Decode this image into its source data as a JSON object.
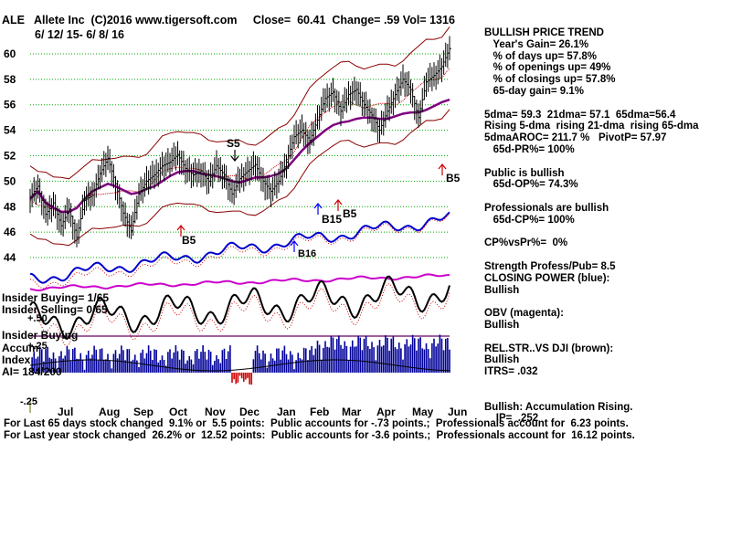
{
  "header": {
    "title": "ALE   Allete Inc  (C)2016 www.tigersoft.com     Close=  60.41  Change= .59 Vol= 1316",
    "date_range": "6/ 12/ 15- 6/ 8/ 16"
  },
  "signals": {
    "s5": "S5",
    "b5_lower": "B5",
    "b15": "B15",
    "b5_mid": "B5",
    "b5_right": "B5",
    "b_bottom": "B16"
  },
  "lower_labels": {
    "insider_buying_1": "Insider Buying= 1/65",
    "insider_selling": "Insider Selling= 0/65",
    "plus_50": "+.50",
    "insider_buying_2": "Insider Buying",
    "accum": "Accum",
    "index": "Index",
    "ai": "AI= 184/200",
    "plus_25": "+.25",
    "minus_25": "-.25"
  },
  "info_panel": {
    "lines": [
      "BULLISH PRICE TREND",
      "   Year's Gain= 26.1%",
      "   % of days up= 57.8%",
      "   % of openings up= 49%",
      "   % of closings up= 57.8%",
      "   65-day gain= 9.1%",
      "",
      "5dma= 59.3  21dma= 57.1  65dma=56.4",
      "Rising 5-dma  rising 21-dma  rising 65-dma",
      "5dmaAROC= 211.7 %   PivotP= 57.97",
      "   65d-PR%= 100%",
      "",
      "Public is bullish",
      "   65d-OP%= 74.3%",
      "",
      "Professionals are bullish",
      "   65d-CP%= 100%",
      "",
      "CP%vsPr%=  0%",
      "",
      "Strength Profess/Pub= 8.5",
      "CLOSING POWER (blue):",
      "Bullish",
      "",
      "OBV (magenta):",
      "Bullish",
      "",
      "REL.STR..VS DJI (brown):",
      "Bullish",
      "ITRS= .032",
      "",
      "",
      "Bullish: Accumulation Rising.",
      "    IP=  .252"
    ]
  },
  "footer": {
    "line1": "For Last 65 days stock changed  9.1% or  5.5 points:  Public accounts for -.73 points.;  Professionals account for  6.23 points.",
    "line2": "For Last year stock changed  26.2% or  12.52 points:  Public accounts for -3.6 points.;  Professionals account for  16.12 points."
  },
  "colors": {
    "price": "#000000",
    "bands": "#8b0000",
    "ma65": "#800080",
    "closing_power": "#0000cc",
    "obv": "#cc00cc",
    "rel_str": "#b22222",
    "accumulation": "#000099",
    "grid": "#00aa00",
    "signal_arrow": "#cc0000",
    "buy_arrow": "#0000ff"
  },
  "chart_data": {
    "type": "line",
    "title": "ALE   Allete Inc  (C)2016 www.tigersoft.com     Close=  60.41  Change= .59 Vol= 1316",
    "x_labels": [
      "Jul",
      "Aug",
      "Sep",
      "Oct",
      "Nov",
      "Dec",
      "Jan",
      "Feb",
      "Mar",
      "Apr",
      "May",
      "Jun"
    ],
    "y_ticks": [
      44,
      46,
      48,
      50,
      52,
      54,
      56,
      58,
      60
    ],
    "ylim": [
      43,
      61
    ],
    "grid": true,
    "series": [
      {
        "values": [
          48.8,
          49.6,
          47.4,
          48.3,
          46.5,
          47.8,
          45.6,
          48.5,
          48.9,
          50.6,
          51.8,
          49.8,
          47.5,
          46.1,
          49.0,
          50.0,
          50.5,
          51.2,
          51.5,
          52.1,
          51.0,
          50.5,
          50.8,
          50.0,
          51.2,
          50.5,
          49.0,
          50.2,
          50.8,
          51.3,
          50.0,
          49.2,
          50.0,
          51.5,
          53.5,
          54.0,
          53.2,
          54.8,
          56.5,
          57.0,
          55.5,
          56.8,
          57.2,
          56.0,
          55.2,
          54.0,
          55.5,
          56.8,
          58.0,
          57.2,
          55.0,
          57.8,
          58.3,
          59.0,
          60.41
        ]
      },
      {
        "values": [
          48.6,
          49.2,
          48.3,
          47.9,
          47.6,
          47.6,
          47.9,
          48.6,
          49.2,
          49.5,
          49.8,
          49.6,
          49.3,
          49.0,
          49.1,
          49.4,
          49.6,
          50.0,
          50.4,
          50.7,
          50.8,
          50.8,
          50.6,
          50.5,
          50.4,
          50.2,
          50.0,
          49.9,
          50.1,
          50.3,
          50.3,
          50.4,
          50.6,
          51.0,
          51.7,
          52.4,
          53.0,
          53.5,
          54.0,
          54.4,
          54.6,
          54.7,
          54.9,
          55.0,
          55.0,
          54.9,
          54.9,
          55.1,
          55.3,
          55.4,
          55.4,
          55.6,
          55.9,
          56.2,
          56.4
        ]
      }
    ]
  }
}
